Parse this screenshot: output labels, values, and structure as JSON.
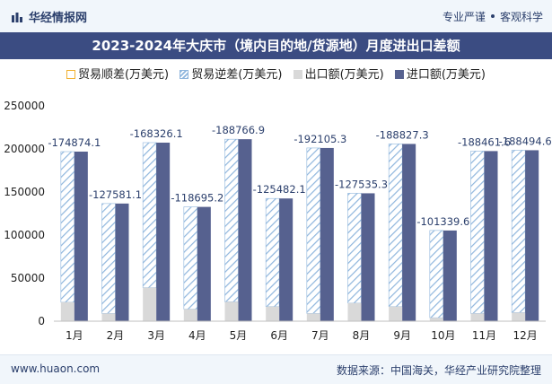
{
  "brand": {
    "name": "华经情报网",
    "logo_icon": "bar-logo-icon"
  },
  "tagline": {
    "left": "专业严谨",
    "right": "客观科学"
  },
  "footer": {
    "site": "www.huaon.com",
    "source": "数据来源：中国海关，华经产业研究院整理"
  },
  "colors": {
    "title_bg": "#3b4c82",
    "import": "#56618f",
    "export": "#d9d9d9",
    "deficit_hatch": "#8fb6dd",
    "surplus": "#f2b233"
  },
  "chart_data": {
    "type": "bar",
    "title": "2023-2024年大庆市（境内目的地/货源地）月度进出口差额",
    "categories": [
      "1月",
      "2月",
      "3月",
      "4月",
      "5月",
      "6月",
      "7月",
      "8月",
      "9月",
      "10月",
      "11月",
      "12月"
    ],
    "series": [
      {
        "name": "贸易顺差(万美元)",
        "values": [
          null,
          null,
          null,
          null,
          null,
          null,
          null,
          null,
          null,
          null,
          null,
          null
        ]
      },
      {
        "name": "贸易逆差(万美元)",
        "values": [
          -174874.1,
          -127581.1,
          -168326.1,
          -118695.2,
          -188766.9,
          -125482.1,
          -192105.3,
          -127535.3,
          -188827.3,
          -101339.6,
          -188461.6,
          -188494.6
        ]
      },
      {
        "name": "出口额(万美元)",
        "values": [
          22000,
          9000,
          39000,
          14000,
          22500,
          17000,
          9000,
          21000,
          17000,
          4000,
          9000,
          10000
        ]
      },
      {
        "name": "进口额(万美元)",
        "values": [
          196900,
          136600,
          207300,
          132700,
          211300,
          142500,
          201100,
          148500,
          205800,
          105300,
          197500,
          198500
        ]
      }
    ],
    "data_labels": [
      "-174874.1",
      "-127581.1",
      "-168326.1",
      "-118695.2",
      "-188766.9",
      "-125482.1",
      "-192105.3",
      "-127535.3",
      "-188827.3",
      "-101339.6",
      "-188461.6",
      "-188494.6"
    ],
    "ylim": [
      0,
      250000
    ],
    "yticks": [
      0,
      50000,
      100000,
      150000,
      200000,
      250000
    ],
    "ytick_labels": [
      "0",
      "50000",
      "100000",
      "150000",
      "200000",
      "250000"
    ],
    "grid": false,
    "legend_position": "top"
  }
}
